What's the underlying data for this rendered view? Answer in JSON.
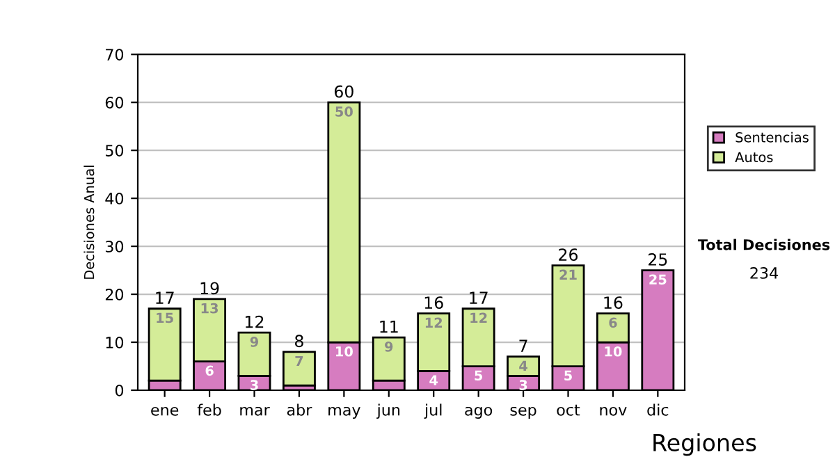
{
  "chart_data": {
    "type": "bar",
    "stacked": true,
    "ylabel": "Decisiones Anual",
    "categories": [
      "ene",
      "feb",
      "mar",
      "abr",
      "may",
      "jun",
      "jul",
      "ago",
      "sep",
      "oct",
      "nov",
      "dic"
    ],
    "series": [
      {
        "name": "Sentencias",
        "color": "#d67cc0",
        "values": [
          2,
          6,
          3,
          1,
          10,
          2,
          4,
          5,
          3,
          5,
          10,
          25
        ],
        "value_labels": [
          null,
          "6",
          "3",
          null,
          "10",
          null,
          "4",
          "5",
          "3",
          "5",
          "10",
          "25"
        ]
      },
      {
        "name": "Autos",
        "color": "#d4ec98",
        "values": [
          15,
          13,
          9,
          7,
          50,
          9,
          12,
          12,
          4,
          21,
          6,
          null
        ],
        "value_labels": [
          "15",
          "13",
          "9",
          "7",
          "50",
          "9",
          "12",
          "12",
          "4",
          "21",
          "6",
          null
        ]
      }
    ],
    "totals": [
      "17",
      "19",
      "12",
      "8",
      "60",
      "11",
      "16",
      "17",
      "7",
      "26",
      "16",
      "25"
    ],
    "ylim": [
      0,
      70
    ],
    "yticks": [
      0,
      10,
      20,
      30,
      40,
      50,
      60,
      70
    ],
    "grid": "y",
    "legend": "right",
    "annotations": [
      "Total Decisiones",
      "234",
      "Regiones"
    ]
  }
}
